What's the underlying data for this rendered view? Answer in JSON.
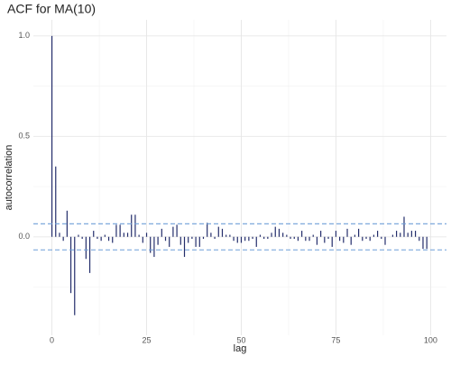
{
  "chart_data": {
    "type": "acf",
    "title": "ACF for MA(10)",
    "x_label": "lag",
    "y_label": "autocorrelation",
    "x": [
      0,
      1,
      2,
      3,
      4,
      5,
      6,
      7,
      8,
      9,
      10,
      11,
      12,
      13,
      14,
      15,
      16,
      17,
      18,
      19,
      20,
      21,
      22,
      23,
      24,
      25,
      26,
      27,
      28,
      29,
      30,
      31,
      32,
      33,
      34,
      35,
      36,
      37,
      38,
      39,
      40,
      41,
      42,
      43,
      44,
      45,
      46,
      47,
      48,
      49,
      50,
      51,
      52,
      53,
      54,
      55,
      56,
      57,
      58,
      59,
      60,
      61,
      62,
      63,
      64,
      65,
      66,
      67,
      68,
      69,
      70,
      71,
      72,
      73,
      74,
      75,
      76,
      77,
      78,
      79,
      80,
      81,
      82,
      83,
      84,
      85,
      86,
      87,
      88,
      89,
      90,
      91,
      92,
      93,
      94,
      95,
      96,
      97,
      98,
      99
    ],
    "values": [
      1.0,
      0.35,
      0.02,
      -0.02,
      0.13,
      -0.28,
      -0.39,
      0.01,
      -0.01,
      -0.11,
      -0.18,
      0.03,
      -0.01,
      -0.02,
      0.01,
      -0.02,
      -0.03,
      0.06,
      0.06,
      0.02,
      0.02,
      0.11,
      0.11,
      0.01,
      -0.03,
      0.02,
      -0.08,
      -0.1,
      -0.04,
      0.04,
      -0.02,
      -0.05,
      0.05,
      0.06,
      -0.04,
      -0.1,
      -0.03,
      -0.01,
      -0.05,
      -0.05,
      -0.01,
      0.07,
      0.02,
      -0.01,
      0.05,
      0.04,
      0.01,
      0.01,
      -0.02,
      -0.03,
      -0.03,
      -0.02,
      -0.02,
      -0.01,
      -0.05,
      0.01,
      -0.01,
      -0.01,
      0.02,
      0.05,
      0.04,
      0.02,
      0.01,
      -0.01,
      -0.01,
      -0.02,
      0.03,
      -0.02,
      -0.02,
      0.01,
      -0.04,
      0.03,
      -0.03,
      -0.01,
      -0.05,
      0.03,
      -0.02,
      -0.03,
      0.04,
      -0.04,
      0.01,
      0.04,
      -0.02,
      -0.01,
      -0.02,
      0.01,
      0.03,
      -0.01,
      -0.04,
      0.0,
      0.01,
      0.03,
      0.02,
      0.1,
      0.02,
      0.03,
      0.03,
      -0.02,
      -0.06,
      -0.06
    ],
    "color": "#232d6b",
    "conf_bands": [
      0.065,
      -0.065
    ],
    "conf_color": "#6f9fd8",
    "xlim": [
      -4.9,
      104.2
    ],
    "ylim": [
      -0.49,
      1.08
    ],
    "xticks": [
      0,
      25,
      50,
      75,
      100
    ],
    "yticks": [
      {
        "value": 0,
        "label": "0.0"
      },
      {
        "value": 0.5,
        "label": "0.5"
      },
      {
        "value": 1,
        "label": "1.0"
      }
    ],
    "grid": true,
    "minor_grid": true
  }
}
